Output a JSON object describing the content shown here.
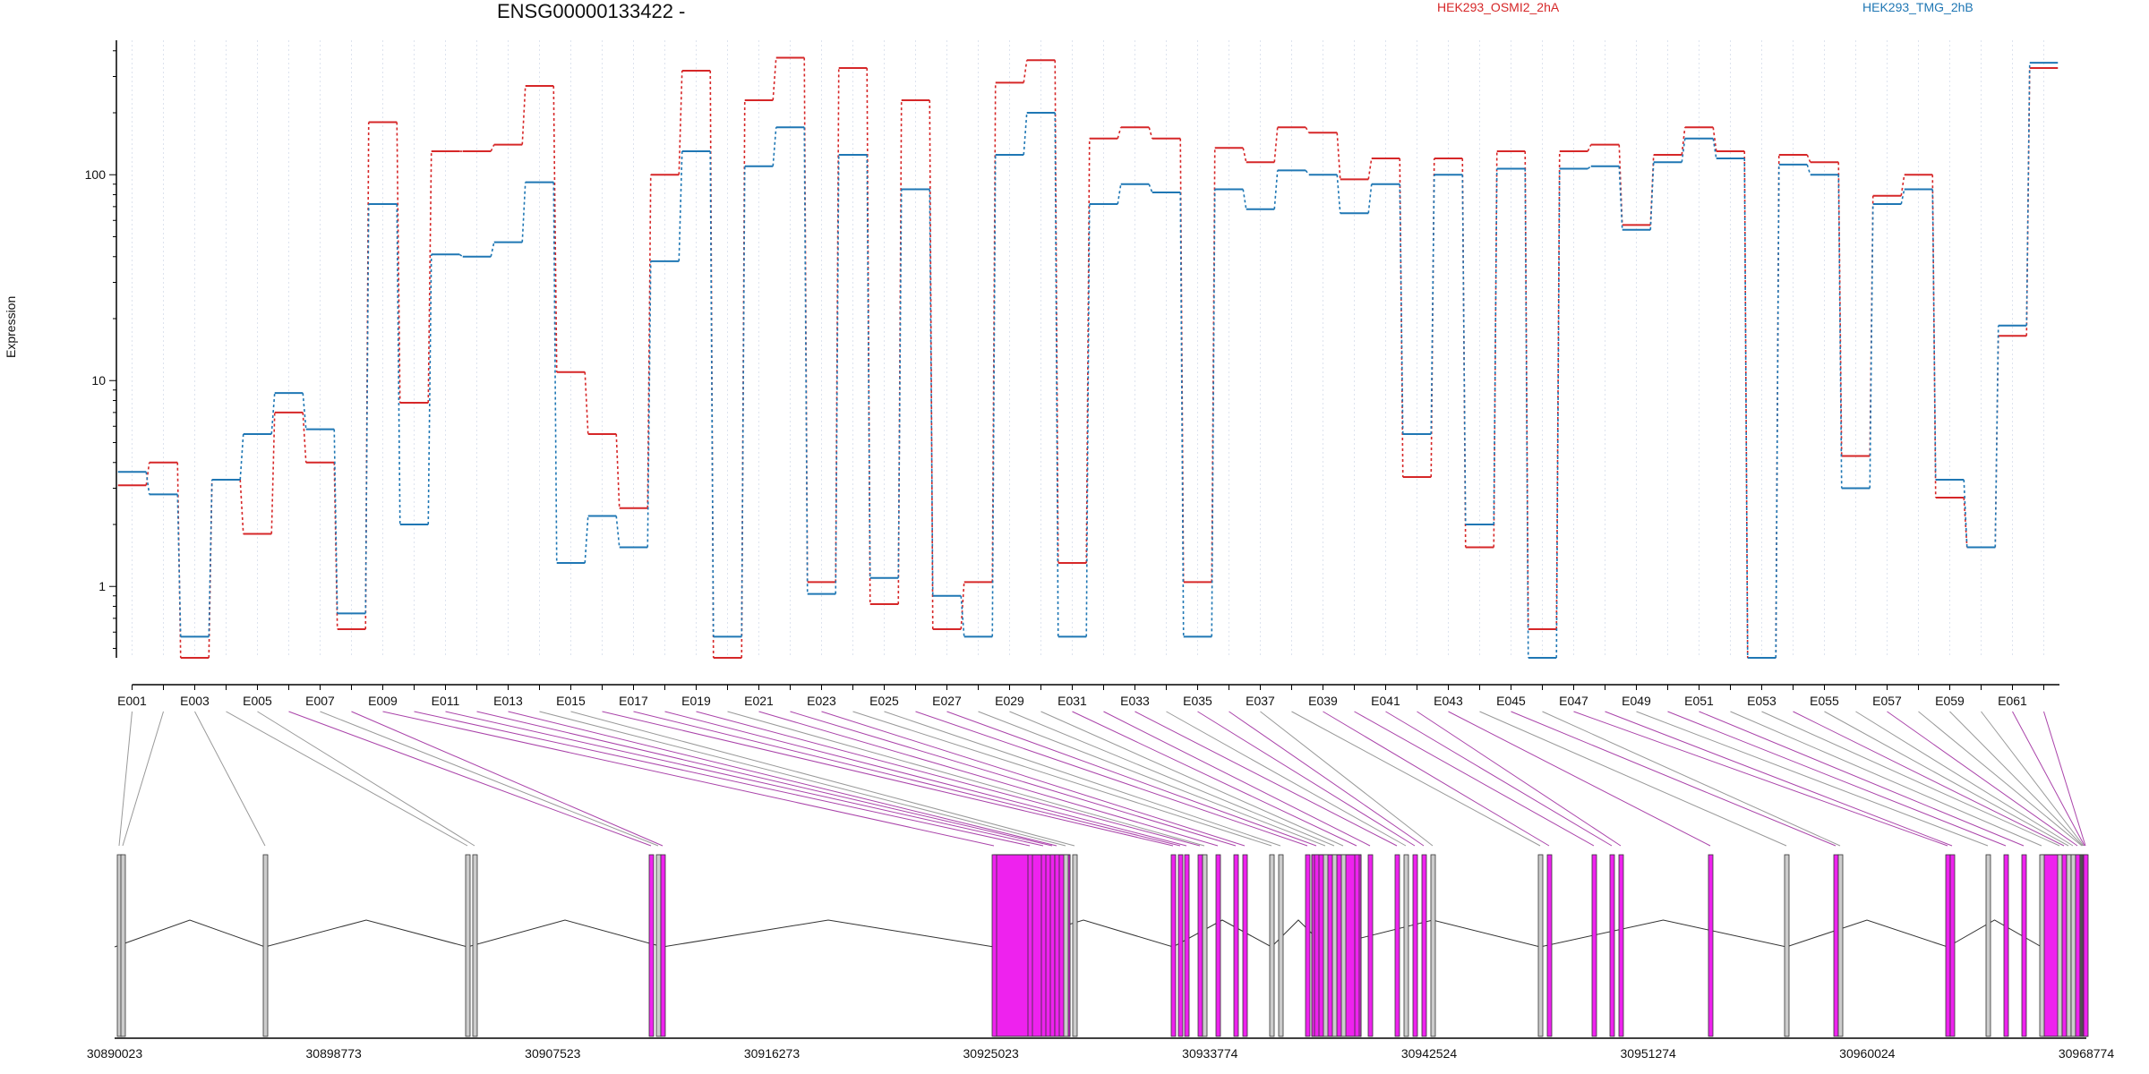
{
  "chart_data": {
    "type": "line",
    "title": "ENSG00000133422 -",
    "ylabel": "Expression",
    "yscale": "log",
    "ylim": [
      0.45,
      450
    ],
    "yticks": [
      "1",
      "10",
      "100"
    ],
    "exon_labels": [
      "E001",
      "E003",
      "E005",
      "E007",
      "E009",
      "E011",
      "E013",
      "E015",
      "E017",
      "E019",
      "E021",
      "E023",
      "E025",
      "E027",
      "E029",
      "E031",
      "E033",
      "E035",
      "E037",
      "E039",
      "E041",
      "E043",
      "E045",
      "E047",
      "E049",
      "E051",
      "E053",
      "E055",
      "E057",
      "E059",
      "E061"
    ],
    "genomic_ticks": [
      "30890023",
      "30898773",
      "30907523",
      "30916273",
      "30925023",
      "30933774",
      "30942524",
      "30951274",
      "30960024",
      "30968774"
    ],
    "series": [
      {
        "name": "HEK293_OSMI2_2hA",
        "color": "#d62728",
        "values": [
          3.1,
          4.0,
          0.45,
          3.3,
          1.8,
          7.0,
          4.0,
          0.62,
          180,
          7.8,
          130,
          130,
          140,
          270,
          11,
          5.5,
          2.4,
          100,
          320,
          0.45,
          230,
          370,
          1.05,
          330,
          0.82,
          230,
          0.62,
          1.05,
          280,
          360,
          1.3,
          150,
          170,
          150,
          1.05,
          135,
          115,
          170,
          160,
          95,
          120,
          3.4,
          120,
          1.55,
          130,
          0.62,
          130,
          140,
          57,
          125,
          170,
          130,
          0.45,
          125,
          115,
          4.3,
          79,
          100,
          2.7,
          1.55,
          16.5,
          330
        ]
      },
      {
        "name": "HEK293_TMG_2hB",
        "color": "#1f77b4",
        "values": [
          3.6,
          2.8,
          0.57,
          3.3,
          5.5,
          8.7,
          5.8,
          0.74,
          72,
          2.0,
          41,
          40,
          47,
          92,
          1.3,
          2.2,
          1.55,
          38,
          130,
          0.57,
          110,
          170,
          0.92,
          125,
          1.1,
          85,
          0.9,
          0.57,
          125,
          200,
          0.57,
          72,
          90,
          82,
          0.57,
          85,
          68,
          105,
          100,
          65,
          90,
          5.5,
          100,
          2.0,
          107,
          0.45,
          107,
          110,
          54,
          115,
          150,
          120,
          0.45,
          112,
          100,
          3.0,
          72,
          85,
          3.3,
          1.55,
          18.5,
          350
        ]
      }
    ]
  }
}
